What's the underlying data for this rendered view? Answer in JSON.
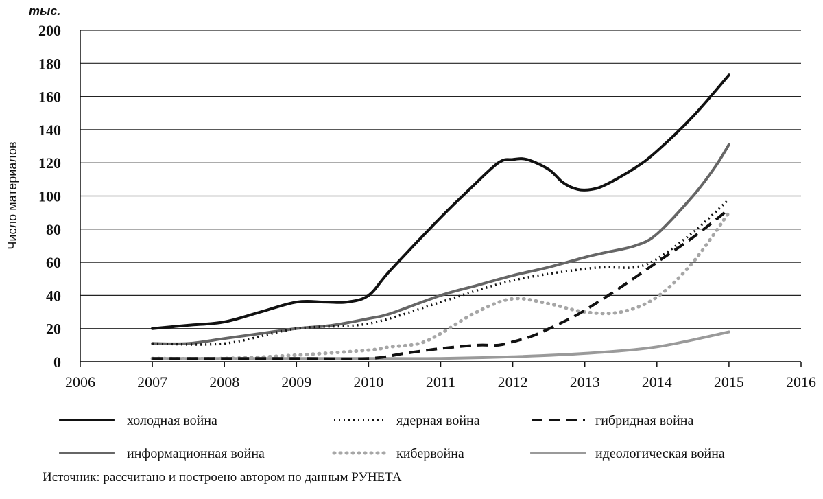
{
  "chart_data": {
    "type": "line",
    "unit_label": "тыс.",
    "ylabel": "Число материалов",
    "xlabel": "",
    "xlim": [
      2006,
      2016
    ],
    "ylim": [
      0,
      200
    ],
    "x_ticks": [
      "2006",
      "2007",
      "2008",
      "2009",
      "2010",
      "2011",
      "2012",
      "2013",
      "2014",
      "2015",
      "2016"
    ],
    "y_ticks": [
      "0",
      "20",
      "40",
      "60",
      "80",
      "100",
      "120",
      "140",
      "160",
      "180",
      "200"
    ],
    "grid": "horizontal",
    "legend_position": "bottom",
    "series": [
      {
        "name": "холодная война",
        "color": "#111111",
        "style": "solid",
        "x": [
          2007,
          2007.5,
          2008,
          2008.5,
          2009,
          2009.4,
          2009.7,
          2010,
          2010.3,
          2011,
          2011.4,
          2011.8,
          2012,
          2012.2,
          2012.5,
          2012.7,
          2012.9,
          2013.1,
          2013.3,
          2013.7,
          2014,
          2014.5,
          2015
        ],
        "y": [
          20,
          22,
          24,
          30,
          36,
          36,
          36,
          40,
          55,
          87,
          104,
          120,
          122,
          122,
          116,
          108,
          104,
          104,
          107,
          117,
          127,
          148,
          173
        ]
      },
      {
        "name": "ядерная война",
        "color": "#111111",
        "style": "dotted",
        "x": [
          2007,
          2008,
          2009,
          2010,
          2011,
          2011.5,
          2012,
          2012.5,
          2013,
          2013.3,
          2013.7,
          2014,
          2014.5,
          2015
        ],
        "y": [
          11,
          11,
          20,
          23,
          36,
          43,
          49,
          53,
          56,
          57,
          57,
          62,
          78,
          98
        ]
      },
      {
        "name": "гибридная война",
        "color": "#111111",
        "style": "dashed",
        "x": [
          2007,
          2008,
          2009,
          2010,
          2010.5,
          2011,
          2011.5,
          2011.8,
          2012,
          2012.3,
          2012.7,
          2013,
          2013.5,
          2014,
          2014.5,
          2015
        ],
        "y": [
          2,
          2,
          2,
          2,
          5,
          8,
          10,
          10,
          12,
          16,
          24,
          31,
          45,
          60,
          75,
          92
        ]
      },
      {
        "name": "информационная война",
        "color": "#666666",
        "style": "solid",
        "x": [
          2007,
          2007.5,
          2008,
          2008.5,
          2009,
          2009.5,
          2010,
          2010.3,
          2011,
          2011.5,
          2012,
          2012.5,
          2013,
          2013.3,
          2013.7,
          2014,
          2014.5,
          2014.8,
          2015
        ],
        "y": [
          11,
          11,
          14,
          17,
          20,
          22,
          26,
          29,
          40,
          46,
          52,
          57,
          63,
          66,
          70,
          77,
          100,
          117,
          131
        ]
      },
      {
        "name": "кибервойна",
        "color": "#a6a6a6",
        "style": "dotted-thick",
        "x": [
          2007,
          2008,
          2009,
          2010,
          2010.3,
          2010.7,
          2011,
          2011.5,
          2012,
          2012.5,
          2013,
          2013.5,
          2014,
          2014.5,
          2015
        ],
        "y": [
          2,
          2,
          4,
          7,
          9,
          11,
          17,
          30,
          38,
          35,
          30,
          30,
          39,
          60,
          90
        ]
      },
      {
        "name": "идеологическая война",
        "color": "#9a9a9a",
        "style": "solid",
        "x": [
          2007,
          2008,
          2009,
          2010,
          2011,
          2012,
          2013,
          2014,
          2015
        ],
        "y": [
          2,
          2,
          2,
          2,
          2,
          3,
          5,
          9,
          18
        ]
      }
    ],
    "source": "Источник: рассчитано и построено автором по данным РУНЕТА"
  }
}
